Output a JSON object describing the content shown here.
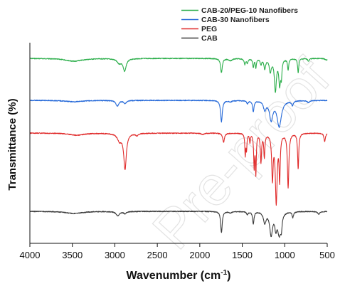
{
  "watermark": "Pre-proof",
  "chart_data": {
    "type": "line",
    "xlabel": "Wavenumber (cm-1)",
    "xlabel_parts": {
      "main": "Wavenumber (cm",
      "sup": "-1",
      "close": ")"
    },
    "ylabel": "Transmittance (%)",
    "xlim": [
      4000,
      500
    ],
    "x_reversed": true,
    "x_ticks": [
      4000,
      3500,
      3000,
      2500,
      2000,
      1500,
      1000,
      500
    ],
    "y_ticks_shown": false,
    "grid": false,
    "legend_position": "top-right",
    "legend_entries": [
      {
        "name": "CAB-20/PEG-10 Nanofibers",
        "color": "#2bae4a"
      },
      {
        "name": "CAB-30 Nanofibers",
        "color": "#2468d8"
      },
      {
        "name": "PEG",
        "color": "#e02a2a"
      },
      {
        "name": "CAB",
        "color": "#3a3a3a"
      }
    ],
    "series": [
      {
        "name": "CAB-20/PEG-10 Nanofibers",
        "color": "#2bae4a",
        "baseline": 82,
        "noise": 0.6,
        "peaks": [
          [
            3480,
            4,
            120
          ],
          [
            2950,
            6,
            30
          ],
          [
            2885,
            17,
            22
          ],
          [
            1745,
            20,
            12
          ],
          [
            1640,
            3,
            25
          ],
          [
            1470,
            8,
            10
          ],
          [
            1440,
            6,
            10
          ],
          [
            1370,
            12,
            8
          ],
          [
            1340,
            13,
            7
          ],
          [
            1280,
            8,
            10
          ],
          [
            1235,
            14,
            12
          ],
          [
            1170,
            18,
            14
          ],
          [
            1110,
            45,
            14
          ],
          [
            1060,
            35,
            12
          ],
          [
            1040,
            22,
            8
          ],
          [
            960,
            16,
            8
          ],
          [
            842,
            20,
            8
          ],
          [
            720,
            4,
            10
          ]
        ],
        "end_tail": [
          [
            510,
            2,
            20
          ]
        ]
      },
      {
        "name": "CAB-30 Nanofibers",
        "color": "#2468d8",
        "baseline": 141,
        "noise": 0.6,
        "peaks": [
          [
            3480,
            2,
            120
          ],
          [
            2970,
            8,
            20
          ],
          [
            2880,
            4,
            20
          ],
          [
            1745,
            30,
            12
          ],
          [
            1640,
            2,
            20
          ],
          [
            1440,
            4,
            12
          ],
          [
            1370,
            15,
            10
          ],
          [
            1235,
            12,
            18
          ],
          [
            1160,
            26,
            24
          ],
          [
            1065,
            36,
            30
          ],
          [
            910,
            6,
            12
          ],
          [
            720,
            3,
            15
          ]
        ],
        "end_tail": []
      },
      {
        "name": "PEG",
        "color": "#e02a2a",
        "baseline": 187,
        "noise": 0.6,
        "peaks": [
          [
            3450,
            3,
            100
          ],
          [
            2945,
            10,
            30
          ],
          [
            2880,
            50,
            18
          ],
          [
            2740,
            3,
            20
          ],
          [
            1965,
            2,
            20
          ],
          [
            1720,
            13,
            12
          ],
          [
            1465,
            30,
            6
          ],
          [
            1450,
            22,
            6
          ],
          [
            1410,
            12,
            6
          ],
          [
            1360,
            46,
            7
          ],
          [
            1340,
            55,
            6
          ],
          [
            1280,
            40,
            8
          ],
          [
            1240,
            32,
            8
          ],
          [
            1145,
            62,
            10
          ],
          [
            1100,
            95,
            13
          ],
          [
            1060,
            62,
            8
          ],
          [
            960,
            76,
            10
          ],
          [
            842,
            50,
            8
          ],
          [
            530,
            12,
            10
          ]
        ],
        "end_tail": []
      },
      {
        "name": "CAB",
        "color": "#3a3a3a",
        "baseline": 297,
        "noise": 0.6,
        "peaks": [
          [
            3480,
            3,
            120
          ],
          [
            2965,
            6,
            25
          ],
          [
            2880,
            3,
            20
          ],
          [
            1745,
            30,
            11
          ],
          [
            1640,
            2,
            20
          ],
          [
            1440,
            4,
            12
          ],
          [
            1370,
            17,
            10
          ],
          [
            1235,
            15,
            18
          ],
          [
            1160,
            32,
            20
          ],
          [
            1105,
            20,
            14
          ],
          [
            1065,
            30,
            22
          ],
          [
            1040,
            18,
            10
          ],
          [
            905,
            8,
            10
          ],
          [
            600,
            4,
            15
          ]
        ],
        "end_tail": []
      }
    ]
  }
}
